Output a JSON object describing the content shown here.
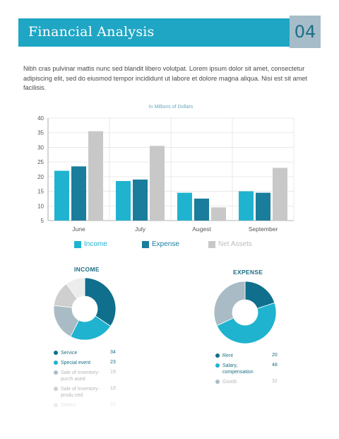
{
  "header": {
    "title": "Financial Analysis",
    "page_number": "04"
  },
  "intro_text": "Nibh cras pulvinar mattis nunc sed blandit libero volutpat. Lorem ipsum dolor sit amet, consectetur adipiscing elit, sed do eiusmod tempor incididunt ut labore et dolore magna aliqua. Nisi est sit amet facilisis.",
  "chart_data": [
    {
      "type": "bar",
      "title": "In Millions of Dollars",
      "categories": [
        "June",
        "July",
        "Augest",
        "September"
      ],
      "series": [
        {
          "name": "Income",
          "values": [
            22,
            18.5,
            14.5,
            15
          ],
          "color": "#1fb3cf"
        },
        {
          "name": "Expense",
          "values": [
            23.5,
            19,
            12.5,
            14.5
          ],
          "color": "#1a7d9c"
        },
        {
          "name": "Net Assets",
          "values": [
            35.5,
            30.5,
            9.5,
            23
          ],
          "color": "#c8c8c8"
        }
      ],
      "ylim": [
        5,
        40
      ],
      "yticks": [
        5,
        10,
        15,
        20,
        25,
        30,
        35,
        40
      ],
      "grid": true,
      "legend": "bottom"
    },
    {
      "type": "pie",
      "title": "INCOME",
      "slices": [
        {
          "label": "Service",
          "value": 34,
          "color": "#0f6f8c"
        },
        {
          "label": "Special event",
          "value": 23,
          "color": "#1fb3cf"
        },
        {
          "label": "Sale of Inventory-purch ased",
          "value": 19,
          "color": "#a9bcc6"
        },
        {
          "label": "Sale of Inventory-produ ced",
          "value": 13,
          "color": "#cfcfcf"
        },
        {
          "label": "Others",
          "value": 10,
          "color": "#ececec"
        }
      ]
    },
    {
      "type": "pie",
      "title": "EXPENSE",
      "slices": [
        {
          "label": "Rent",
          "value": 20,
          "color": "#0f6f8c"
        },
        {
          "label": "Salary, compensation",
          "value": 48,
          "color": "#1fb3cf"
        },
        {
          "label": "Goods",
          "value": 32,
          "color": "#a9bcc6"
        }
      ]
    }
  ]
}
